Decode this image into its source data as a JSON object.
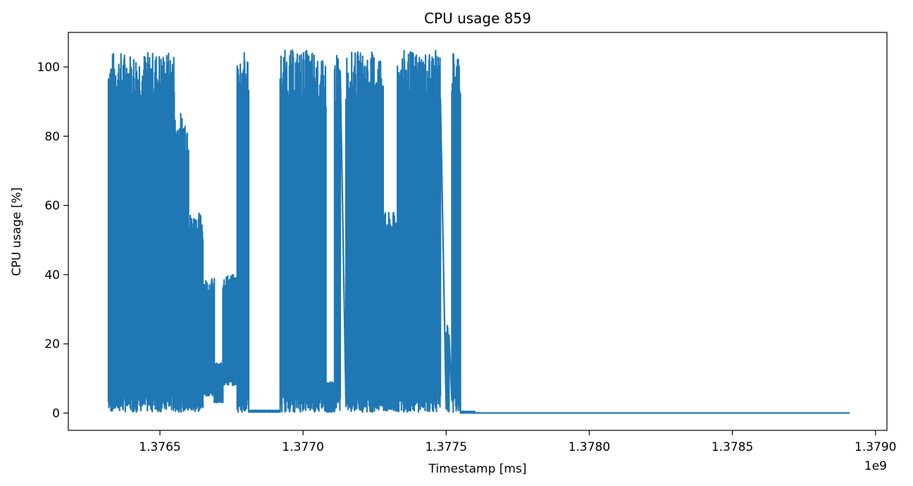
{
  "chart_data": {
    "type": "line",
    "title": "CPU usage 859",
    "xlabel": "Timestamp [ms]",
    "ylabel": "CPU usage [%]",
    "x_offset_label": "1e9",
    "x_scale": 1000000000,
    "xlim": [
      1.37618,
      1.37904
    ],
    "ylim": [
      -5,
      110
    ],
    "x_ticks": [
      1.3765,
      1.377,
      1.3775,
      1.378,
      1.3785,
      1.379
    ],
    "x_tick_labels": [
      "1.3765",
      "1.3770",
      "1.3775",
      "1.3780",
      "1.3785",
      "1.3790"
    ],
    "y_ticks": [
      0,
      20,
      40,
      60,
      80,
      100
    ],
    "y_tick_labels": [
      "0",
      "20",
      "40",
      "60",
      "80",
      "100"
    ],
    "grid": false,
    "series_color": "#1f77b4",
    "bursts": [
      {
        "start": 1.37632,
        "end": 1.37633,
        "low": 0.3,
        "high": 104.5
      },
      {
        "start": 1.37633,
        "end": 1.37655,
        "low": 0.3,
        "high": 104.5
      },
      {
        "start": 1.37655,
        "end": 1.3766,
        "low": 0.3,
        "high": 87
      },
      {
        "start": 1.3766,
        "end": 1.37665,
        "low": 0.3,
        "high": 58
      },
      {
        "start": 1.37665,
        "end": 1.37669,
        "low": 5,
        "high": 39
      },
      {
        "start": 1.37669,
        "end": 1.37672,
        "low": 3,
        "high": 14.5
      },
      {
        "start": 1.37672,
        "end": 1.37677,
        "low": 8,
        "high": 40
      },
      {
        "start": 1.37677,
        "end": 1.37681,
        "low": 0.3,
        "high": 104.5
      },
      {
        "start": 1.37681,
        "end": 1.37692,
        "low": 0.3,
        "high": 0.8
      },
      {
        "start": 1.37692,
        "end": 1.37704,
        "low": 0.3,
        "high": 105
      },
      {
        "start": 1.37704,
        "end": 1.37708,
        "low": 0.3,
        "high": 102
      },
      {
        "start": 1.37708,
        "end": 1.37711,
        "low": 0.3,
        "high": 9
      },
      {
        "start": 1.37711,
        "end": 1.37713,
        "low": 0.3,
        "high": 103.5
      },
      {
        "start": 1.37715,
        "end": 1.37728,
        "low": 0.3,
        "high": 104.5
      },
      {
        "start": 1.37728,
        "end": 1.37733,
        "low": 0.3,
        "high": 58
      },
      {
        "start": 1.37733,
        "end": 1.37748,
        "low": 0.3,
        "high": 104.8
      },
      {
        "start": 1.3775,
        "end": 1.37751,
        "low": 0.3,
        "high": 25.5
      },
      {
        "start": 1.37752,
        "end": 1.37755,
        "low": 0.3,
        "high": 104.8
      },
      {
        "start": 1.37755,
        "end": 1.3776,
        "low": 0.0,
        "high": 0.5
      }
    ],
    "idle": {
      "start": 1.3776,
      "end": 1.37891,
      "value": 0.0
    }
  }
}
